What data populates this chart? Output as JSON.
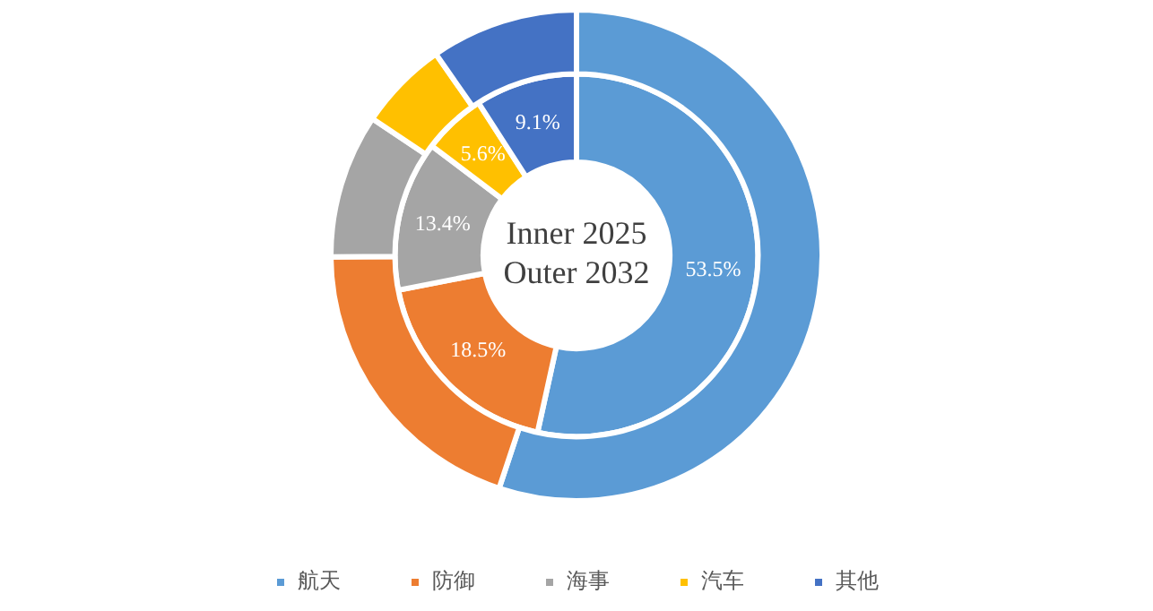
{
  "chart_data": {
    "type": "donut",
    "categories": [
      "航天",
      "防御",
      "海事",
      "汽车",
      "其他"
    ],
    "colors": [
      "#5b9bd5",
      "#ed7d31",
      "#a5a5a5",
      "#ffc000",
      "#4472c4"
    ],
    "series": [
      {
        "values": [
          55.1,
          19.8,
          9.5,
          5.9,
          9.7
        ]
      },
      {
        "values": [
          53.5,
          18.5,
          13.4,
          5.6,
          9.1
        ],
        "value_labels": [
          "53.5%",
          "18.5%",
          "13.4%",
          "5.6%",
          "9.1%"
        ]
      }
    ],
    "annotations": [
      "Inner 2025",
      "Outer 2032"
    ],
    "legend": "bottom"
  }
}
